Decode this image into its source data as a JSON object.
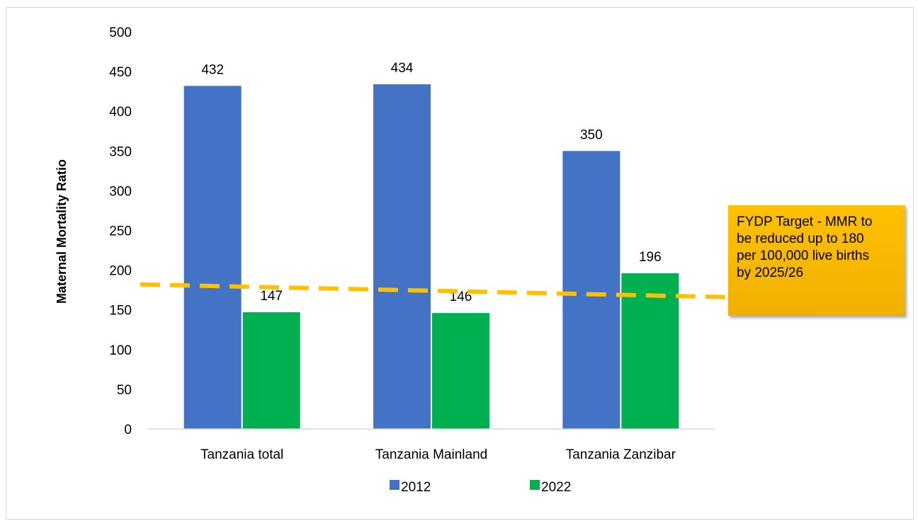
{
  "chart_data": {
    "type": "bar",
    "categories": [
      "Tanzania total",
      "Tanzania Mainland",
      "Tanzania Zanzibar"
    ],
    "series": [
      {
        "name": "2012",
        "values": [
          432,
          434,
          350
        ],
        "color": "#4472c4"
      },
      {
        "name": "2022",
        "values": [
          147,
          146,
          196
        ],
        "color": "#00b050"
      }
    ],
    "xlabel": "",
    "ylabel": "Maternal Mortality Ratio",
    "ylim": [
      0,
      500
    ],
    "yticks": [
      "0",
      "50",
      "100",
      "150",
      "200",
      "250",
      "300",
      "350",
      "400",
      "450",
      "500"
    ],
    "grid": false,
    "legend": "bottom",
    "target_line": {
      "color": "#ffc000",
      "start_value": 182,
      "end_value": 166,
      "style": "dashed"
    },
    "annotation": {
      "lines": [
        "FYDP Target - MMR to",
        "be reduced up to 180",
        "per 100,000 live births",
        "by 2025/26"
      ],
      "color": "#ffc000"
    }
  }
}
